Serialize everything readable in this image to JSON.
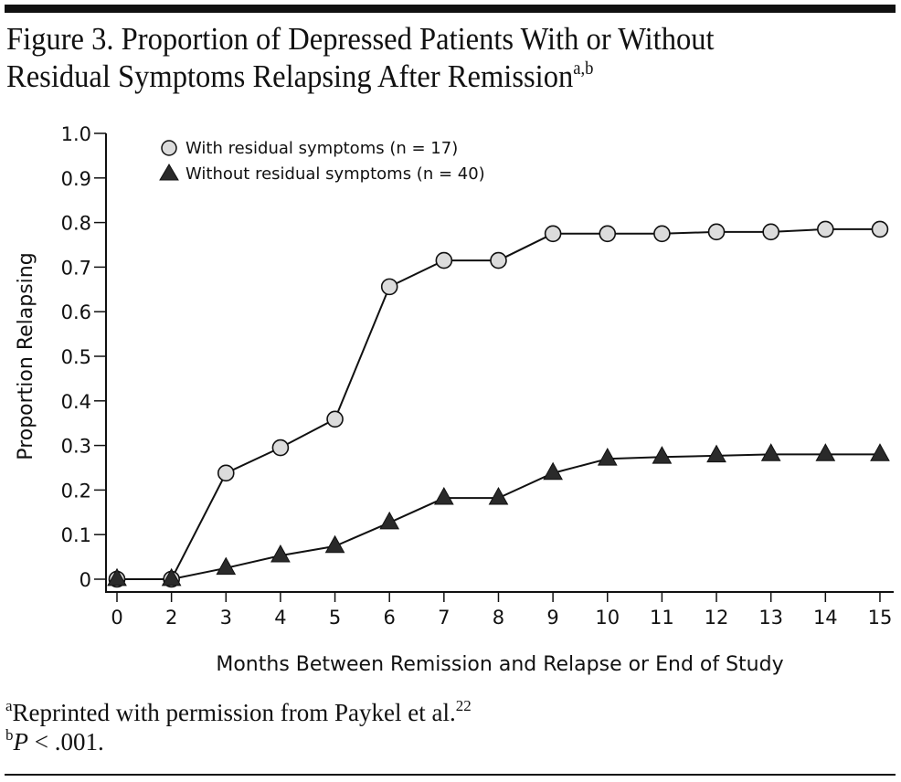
{
  "figure": {
    "title_line1": "Figure 3. Proportion of Depressed Patients With or Without",
    "title_line2": "Residual Symptoms Relapsing After Remission",
    "title_superscript": "a,b",
    "footnotes": [
      {
        "marker": "a",
        "text": "Reprinted with permission from Paykel et al.",
        "superscript": "22"
      },
      {
        "marker": "b",
        "italic_prefix": "P",
        "text": " < .001."
      }
    ]
  },
  "chart_data": {
    "type": "line",
    "title": "Proportion of Depressed Patients With or Without Residual Symptoms Relapsing After Remission",
    "xlabel": "Months Between Remission and Relapse or End of Study",
    "ylabel": "Proportion Relapsing",
    "x": [
      0,
      2,
      3,
      4,
      5,
      6,
      7,
      8,
      9,
      10,
      11,
      12,
      13,
      14,
      15
    ],
    "x_tick_labels": [
      "0",
      "2",
      "3",
      "4",
      "5",
      "6",
      "7",
      "8",
      "9",
      "10",
      "11",
      "12",
      "13",
      "14",
      "15"
    ],
    "y_ticks": [
      0,
      0.1,
      0.2,
      0.3,
      0.4,
      0.5,
      0.6,
      0.7,
      0.8,
      0.9,
      1.0
    ],
    "y_tick_labels": [
      "0",
      "0.1",
      "0.2",
      "0.3",
      "0.4",
      "0.5",
      "0.6",
      "0.7",
      "0.8",
      "0.9",
      "1.0"
    ],
    "ylim": [
      0,
      1.0
    ],
    "grid": false,
    "legend_position": "top-left",
    "series": [
      {
        "name": "With residual symptoms (n = 17)",
        "marker": "circle",
        "marker_fill": "#dcdcdc",
        "marker_stroke": "#111111",
        "values": [
          0,
          0,
          0.238,
          0.295,
          0.359,
          0.656,
          0.715,
          0.715,
          0.775,
          0.775,
          0.775,
          0.779,
          0.779,
          0.785,
          0.785
        ]
      },
      {
        "name": "Without residual symptoms (n = 40)",
        "marker": "triangle",
        "marker_fill": "#2a2a2a",
        "marker_stroke": "#111111",
        "values": [
          0,
          0,
          0.025,
          0.053,
          0.074,
          0.127,
          0.182,
          0.182,
          0.238,
          0.27,
          0.274,
          0.277,
          0.28,
          0.28,
          0.28
        ]
      }
    ]
  }
}
